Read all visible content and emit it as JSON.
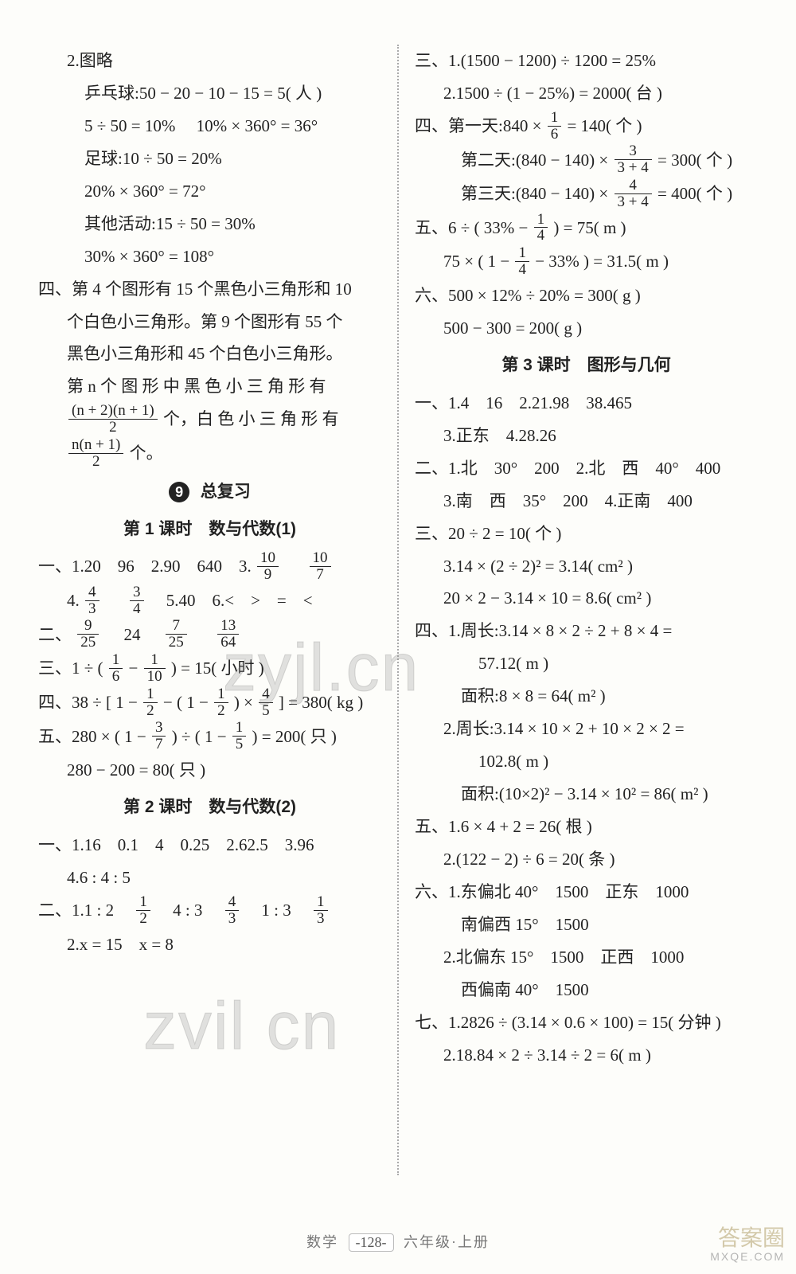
{
  "left": {
    "l1": "2.图略",
    "l2": "乒乓球:50 − 20 − 10 − 15 = 5( 人 )",
    "l3": "5 ÷ 50 = 10%  10% × 360° = 36°",
    "l4": "足球:10 ÷ 50 = 20%",
    "l5": "20% × 360° = 72°",
    "l6": "其他活动:15 ÷ 50 = 30%",
    "l7": "30% × 360° = 108°",
    "l8a": "四、第 4 个图形有 15 个黑色小三角形和 10",
    "l8b": "个白色小三角形。第 9 个图形有 55 个",
    "l8c": "黑色小三角形和 45 个白色小三角形。",
    "l8d": "第 n 个 图 形 中 黑 色 小 三 角 形 有",
    "frac1_num": "(n + 2)(n + 1)",
    "frac1_den": "2",
    "l8e": "个，白 色 小 三 角 形 有",
    "frac2_num": "n(n + 1)",
    "frac2_den": "2",
    "l8f": "个。",
    "unit9_badge": "9",
    "unit9_title": "总复习",
    "lesson1": "第 1 课时　数与代数(1)",
    "r1a_pre": "一、1.20　96　2.90　640　3.",
    "f10_9n": "10",
    "f10_9d": "9",
    "f10_7n": "10",
    "f10_7d": "7",
    "r1b_pre": "4.",
    "f4_3n": "4",
    "f4_3d": "3",
    "f3_4n": "3",
    "f3_4d": "4",
    "r1b_mid": "　5.40　6.<　>　=　<",
    "r2_pre": "二、",
    "f9_25n": "9",
    "f9_25d": "25",
    "r2_a": "24",
    "f7_25n": "7",
    "f7_25d": "25",
    "f13_64n": "13",
    "f13_64d": "64",
    "r3_pre": "三、1 ÷ (",
    "f1_6n": "1",
    "f1_6d": "6",
    "f1_10n": "1",
    "f1_10d": "10",
    "r3_post": ") = 15( 小时 )",
    "r4_pre": "四、38 ÷ [ 1 − ",
    "f1_2n": "1",
    "f1_2d": "2",
    "r4_mid": " − ( 1 − ",
    "r4_mid2": " ) × ",
    "f4_5n": "4",
    "f4_5d": "5",
    "r4_post": " ] = 380( kg )",
    "r5_pre": "五、280 × ( 1 − ",
    "f3_7n": "3",
    "f3_7d": "7",
    "r5_mid": " ) ÷ ( 1 − ",
    "f1_5n": "1",
    "f1_5d": "5",
    "r5_post": " ) = 200( 只 )",
    "r5b": "280 − 200 = 80( 只 )",
    "lesson2": "第 2 课时　数与代数(2)",
    "l2_1": "一、1.16　0.1　4　0.25　2.62.5　3.96",
    "l2_1b": "4.6 : 4 : 5",
    "l2_2pre": "二、1.1 : 2　",
    "fL1_2n": "1",
    "fL1_2d": "2",
    "l2_2mid": "　4 : 3　",
    "fL4_3n": "4",
    "fL4_3d": "3",
    "l2_2mid2": "　1 : 3　",
    "fL1_3n": "1",
    "fL1_3d": "3",
    "l2_2b": "2.x = 15　x = 8"
  },
  "right": {
    "r1": "三、1.(1500 − 1200) ÷ 1200 = 25%",
    "r2": "2.1500 ÷ (1 − 25%) = 2000( 台 )",
    "r3pre": "四、第一天:840 × ",
    "fR1_6n": "1",
    "fR1_6d": "6",
    "r3post": " = 140( 个 )",
    "r4pre": "第二天:(840 − 140) × ",
    "fR3_34n": "3",
    "fR3_34d": "3 + 4",
    "r4post": " = 300( 个 )",
    "r5pre": "第三天:(840 − 140) × ",
    "fR4_34n": "4",
    "fR4_34d": "3 + 4",
    "r5post": " = 400( 个 )",
    "r6pre": "五、6 ÷ ( 33% − ",
    "fR1_4n": "1",
    "fR1_4d": "4",
    "r6post": " ) = 75( m )",
    "r7pre": "75 × ( 1 − ",
    "r7mid": " − 33% ) = 31.5( m )",
    "r8": "六、500 × 12% ÷ 20% = 300( g )",
    "r9": "500 − 300 = 200( g )",
    "lesson3": "第 3 课时　图形与几何",
    "s1": "一、1.4　16　2.21.98　38.465",
    "s1b": "3.正东　4.28.26",
    "s2": "二、1.北　30°　200　2.北　西　40°　400",
    "s2b": "3.南　西　35°　200　4.正南　400",
    "s3": "三、20 ÷ 2 = 10( 个 )",
    "s3b": "3.14 × (2 ÷ 2)² = 3.14( cm² )",
    "s3c": "20 × 2 − 3.14 × 10 = 8.6( cm² )",
    "s4": "四、1.周长:3.14 × 8 × 2 ÷ 2 + 8 × 4 =",
    "s4b": "57.12( m )",
    "s4c": "面积:8 × 8 = 64( m² )",
    "s4d": "2.周长:3.14 × 10 × 2 + 10 × 2 × 2 =",
    "s4e": "102.8( m )",
    "s4f": "面积:(10×2)² − 3.14 × 10² = 86( m² )",
    "s5": "五、1.6 × 4 + 2 = 26( 根 )",
    "s5b": "2.(122 − 2) ÷ 6 = 20( 条 )",
    "s6": "六、1.东偏北 40°　1500　正东　1000",
    "s6b": "南偏西 15°　1500",
    "s6c": "2.北偏东 15°　1500　正西　1000",
    "s6d": "西偏南 40°　1500",
    "s7": "七、1.2826 ÷ (3.14 × 0.6 × 100) = 15( 分钟 )",
    "s7b": "2.18.84 × 2 ÷ 3.14 ÷ 2 = 6( m )"
  },
  "footer": {
    "subject": "数学",
    "page": "128",
    "grade": "六年级·上册"
  },
  "watermark": {
    "w1": "zyjl.cn",
    "w2": "zvil cn",
    "brand": "答案圈",
    "brand2": "MXQE.COM"
  }
}
